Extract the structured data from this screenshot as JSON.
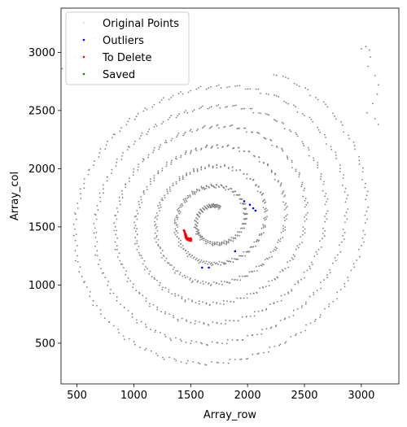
{
  "chart_data": {
    "type": "scatter",
    "xlabel": "Array_row",
    "ylabel": "Array_col",
    "xlim": [
      360,
      3330
    ],
    "ylim": [
      150,
      3380
    ],
    "xticks": [
      500,
      1000,
      1500,
      2000,
      2500,
      3000
    ],
    "yticks": [
      500,
      1000,
      1500,
      2000,
      2500,
      3000
    ],
    "grid": false,
    "legend_position": "top-left",
    "spiral": {
      "center": [
        1720,
        1560
      ],
      "turns": 7,
      "start_radius": 110,
      "pitch": 170,
      "x_scale": 1.0,
      "y_scale": 1.05,
      "points_per_turn": 220
    },
    "series": [
      {
        "name": "Original Points",
        "color": "#808080",
        "marker_radius": 0.9,
        "points": [
          [
            370,
            2860
          ],
          [
            420,
            2910
          ],
          [
            480,
            2960
          ],
          [
            540,
            3020
          ],
          [
            600,
            3080
          ],
          [
            660,
            3120
          ],
          [
            720,
            3150
          ],
          [
            780,
            3180
          ],
          [
            820,
            3220
          ],
          [
            880,
            3250
          ],
          [
            920,
            3260
          ],
          [
            970,
            3230
          ],
          [
            1000,
            3190
          ],
          [
            3000,
            3030
          ],
          [
            3040,
            3050
          ],
          [
            3070,
            3020
          ],
          [
            3080,
            2960
          ],
          [
            3060,
            2880
          ],
          [
            3120,
            2800
          ],
          [
            3150,
            2720
          ],
          [
            3140,
            2640
          ],
          [
            3100,
            2560
          ],
          [
            3050,
            2480
          ],
          [
            3120,
            2430
          ],
          [
            3150,
            2380
          ]
        ]
      },
      {
        "name": "Outliers",
        "color": "#0000ff",
        "marker_radius": 1.3,
        "points": [
          [
            1970,
            1720
          ],
          [
            2020,
            1690
          ],
          [
            2050,
            1660
          ],
          [
            2070,
            1640
          ],
          [
            1890,
            1290
          ],
          [
            1600,
            1150
          ],
          [
            1660,
            1150
          ]
        ]
      },
      {
        "name": "To Delete",
        "color": "#ff0000",
        "marker_radius": 1.3,
        "points": [
          [
            1440,
            1470
          ],
          [
            1445,
            1455
          ],
          [
            1450,
            1440
          ],
          [
            1452,
            1425
          ],
          [
            1455,
            1410
          ],
          [
            1460,
            1398
          ],
          [
            1470,
            1390
          ],
          [
            1480,
            1385
          ],
          [
            1492,
            1382
          ],
          [
            1502,
            1380
          ],
          [
            1446,
            1462
          ],
          [
            1448,
            1448
          ],
          [
            1452,
            1432
          ],
          [
            1458,
            1418
          ],
          [
            1465,
            1405
          ],
          [
            1475,
            1395
          ],
          [
            1486,
            1388
          ],
          [
            1496,
            1384
          ],
          [
            1505,
            1392
          ],
          [
            1500,
            1402
          ],
          [
            1490,
            1398
          ],
          [
            1478,
            1402
          ],
          [
            1466,
            1412
          ],
          [
            1460,
            1425
          ],
          [
            1456,
            1440
          ]
        ]
      },
      {
        "name": "Saved",
        "color": "#008000",
        "marker_radius": 1.3,
        "points": []
      }
    ]
  }
}
